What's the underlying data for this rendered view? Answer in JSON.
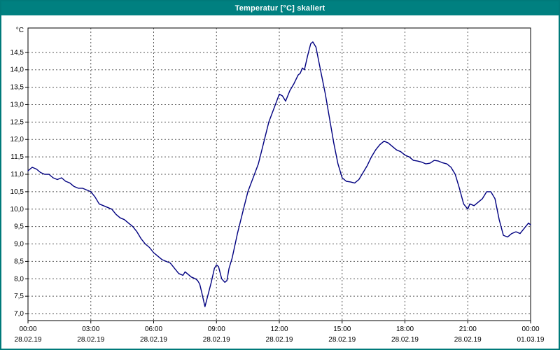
{
  "window": {
    "title": "Temperatur [°C] skaliert"
  },
  "colors": {
    "titlebar": "#008080",
    "title_text": "#ffffff",
    "plot_border": "#000000",
    "grid": "#555555",
    "line": "#000080",
    "background": "#ffffff"
  },
  "chart_data": {
    "type": "line",
    "title": "Temperatur [°C] skaliert",
    "ylabel": "°C",
    "xlabel": "",
    "unit_label": "°C",
    "grid": "dashed",
    "legend": "none",
    "line_color": "#000080",
    "xlim_hours": [
      0,
      24
    ],
    "ylim": [
      6.8,
      15.2
    ],
    "y_ticks": [
      7.0,
      7.5,
      8.0,
      8.5,
      9.0,
      9.5,
      10.0,
      10.5,
      11.0,
      11.5,
      12.0,
      12.5,
      13.0,
      13.5,
      14.0,
      14.5
    ],
    "x_tick_hours": [
      0,
      3,
      6,
      9,
      12,
      15,
      18,
      21,
      24
    ],
    "x_tick_labels": [
      "00:00",
      "03:00",
      "06:00",
      "09:00",
      "12:00",
      "15:00",
      "18:00",
      "21:00",
      "00:00"
    ],
    "x_tick_dates": [
      "28.02.19",
      "28.02.19",
      "28.02.19",
      "28.02.19",
      "28.02.19",
      "28.02.19",
      "28.02.19",
      "28.02.19",
      "01.03.19"
    ],
    "series": [
      {
        "name": "Temperatur",
        "points": [
          [
            0.0,
            11.1
          ],
          [
            0.2,
            11.2
          ],
          [
            0.4,
            11.15
          ],
          [
            0.6,
            11.05
          ],
          [
            0.8,
            11.0
          ],
          [
            1.0,
            11.0
          ],
          [
            1.2,
            10.9
          ],
          [
            1.4,
            10.85
          ],
          [
            1.6,
            10.9
          ],
          [
            1.8,
            10.8
          ],
          [
            2.0,
            10.75
          ],
          [
            2.2,
            10.65
          ],
          [
            2.4,
            10.6
          ],
          [
            2.6,
            10.6
          ],
          [
            2.8,
            10.55
          ],
          [
            3.0,
            10.5
          ],
          [
            3.2,
            10.35
          ],
          [
            3.4,
            10.15
          ],
          [
            3.6,
            10.1
          ],
          [
            3.8,
            10.05
          ],
          [
            4.0,
            10.0
          ],
          [
            4.2,
            9.85
          ],
          [
            4.4,
            9.75
          ],
          [
            4.6,
            9.7
          ],
          [
            4.8,
            9.6
          ],
          [
            5.0,
            9.5
          ],
          [
            5.2,
            9.35
          ],
          [
            5.4,
            9.15
          ],
          [
            5.6,
            9.0
          ],
          [
            5.8,
            8.9
          ],
          [
            6.0,
            8.75
          ],
          [
            6.2,
            8.65
          ],
          [
            6.4,
            8.55
          ],
          [
            6.6,
            8.5
          ],
          [
            6.8,
            8.45
          ],
          [
            7.0,
            8.3
          ],
          [
            7.2,
            8.15
          ],
          [
            7.4,
            8.1
          ],
          [
            7.5,
            8.2
          ],
          [
            7.6,
            8.15
          ],
          [
            7.8,
            8.05
          ],
          [
            8.0,
            8.0
          ],
          [
            8.1,
            7.95
          ],
          [
            8.2,
            7.85
          ],
          [
            8.3,
            7.6
          ],
          [
            8.45,
            7.2
          ],
          [
            8.6,
            7.55
          ],
          [
            8.75,
            7.9
          ],
          [
            8.9,
            8.3
          ],
          [
            9.0,
            8.4
          ],
          [
            9.1,
            8.35
          ],
          [
            9.25,
            8.0
          ],
          [
            9.4,
            7.9
          ],
          [
            9.5,
            7.95
          ],
          [
            9.6,
            8.3
          ],
          [
            9.75,
            8.6
          ],
          [
            10.0,
            9.3
          ],
          [
            10.25,
            9.9
          ],
          [
            10.5,
            10.5
          ],
          [
            10.75,
            10.9
          ],
          [
            11.0,
            11.3
          ],
          [
            11.25,
            11.9
          ],
          [
            11.5,
            12.5
          ],
          [
            11.75,
            12.9
          ],
          [
            12.0,
            13.3
          ],
          [
            12.15,
            13.25
          ],
          [
            12.3,
            13.1
          ],
          [
            12.5,
            13.4
          ],
          [
            12.7,
            13.6
          ],
          [
            12.9,
            13.85
          ],
          [
            13.0,
            13.9
          ],
          [
            13.1,
            14.05
          ],
          [
            13.2,
            14.0
          ],
          [
            13.35,
            14.4
          ],
          [
            13.5,
            14.75
          ],
          [
            13.6,
            14.8
          ],
          [
            13.75,
            14.65
          ],
          [
            13.9,
            14.2
          ],
          [
            14.0,
            13.9
          ],
          [
            14.2,
            13.3
          ],
          [
            14.4,
            12.6
          ],
          [
            14.6,
            11.9
          ],
          [
            14.8,
            11.3
          ],
          [
            15.0,
            10.9
          ],
          [
            15.2,
            10.8
          ],
          [
            15.4,
            10.78
          ],
          [
            15.6,
            10.75
          ],
          [
            15.8,
            10.85
          ],
          [
            16.0,
            11.05
          ],
          [
            16.2,
            11.25
          ],
          [
            16.4,
            11.5
          ],
          [
            16.6,
            11.7
          ],
          [
            16.8,
            11.85
          ],
          [
            17.0,
            11.95
          ],
          [
            17.2,
            11.9
          ],
          [
            17.4,
            11.8
          ],
          [
            17.6,
            11.7
          ],
          [
            17.8,
            11.65
          ],
          [
            18.0,
            11.55
          ],
          [
            18.2,
            11.5
          ],
          [
            18.4,
            11.4
          ],
          [
            18.6,
            11.38
          ],
          [
            18.8,
            11.35
          ],
          [
            19.0,
            11.3
          ],
          [
            19.2,
            11.32
          ],
          [
            19.4,
            11.4
          ],
          [
            19.6,
            11.38
          ],
          [
            19.8,
            11.33
          ],
          [
            20.0,
            11.3
          ],
          [
            20.2,
            11.2
          ],
          [
            20.4,
            11.0
          ],
          [
            20.6,
            10.6
          ],
          [
            20.8,
            10.15
          ],
          [
            21.0,
            10.0
          ],
          [
            21.1,
            10.15
          ],
          [
            21.3,
            10.1
          ],
          [
            21.5,
            10.2
          ],
          [
            21.7,
            10.3
          ],
          [
            21.9,
            10.5
          ],
          [
            22.1,
            10.5
          ],
          [
            22.3,
            10.3
          ],
          [
            22.5,
            9.7
          ],
          [
            22.7,
            9.25
          ],
          [
            22.9,
            9.2
          ],
          [
            23.1,
            9.3
          ],
          [
            23.3,
            9.35
          ],
          [
            23.5,
            9.3
          ],
          [
            23.7,
            9.45
          ],
          [
            23.9,
            9.6
          ],
          [
            24.0,
            9.55
          ]
        ]
      }
    ]
  }
}
